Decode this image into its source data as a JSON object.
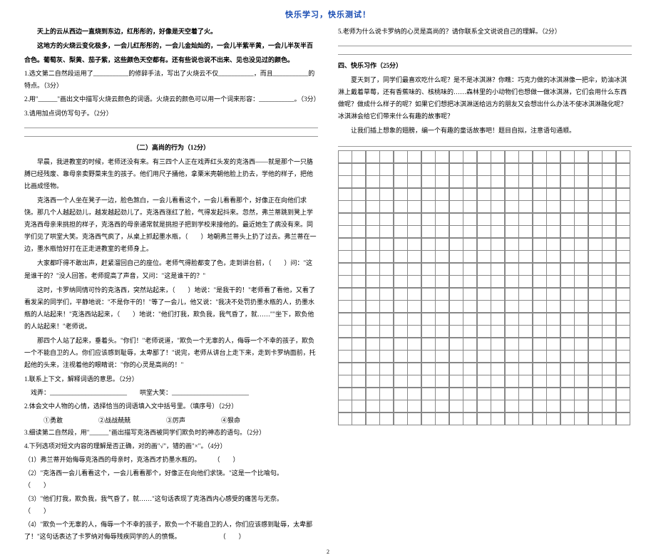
{
  "header": "快乐学习，快乐测试！",
  "left": {
    "p1": "天上的云从西边一直烧到东边，红彤彤的，好像是天空着了火。",
    "p2a": "这地方的火烧云变化极多，一会儿红彤彤的，一会儿金灿灿的，一会儿半紫半黄，一会儿半灰半百",
    "p2b": "合色。葡萄灰、梨黄、茄子紫，这些颜色天空都有。还有些说也说不出来、见也没见过的颜色。",
    "q1": "1.选文第二自然段运用了___________的修辞手法，写出了火烧云不仅___________，而且___________的特点。（3分）",
    "q2": "2.用\"______\"画出文中描写火烧云颜色的词语。火烧云的颜色可以用一个词来形容：___________。（3分）",
    "q3": "3.请用加点词仿写句子。（2分）",
    "title2": "（二）高尚的行为（12分）",
    "s1": "早晨，我进教室的时候，老师还没有来。有三四个人正在戏弄红头发的克洛西——就是那个一只胳膊已经残废、靠母亲卖野菜来生的孩子。他们用尺子捅他，拿栗米壳朝他脸上扔去，学他的样子，把他比画成怪物。",
    "s2": "克洛西一个人坐在凳子一边，脸色煞白，一会儿看看这个，一会儿看看那个，好像正在向他们求饶。那几个人越起劲儿，越发越起劲儿了。克洛西涨红了脸，气得发起抖来。忽然，弗兰蒂跳到凳上学克洛西母亲来挑担的样子，克洛西的母亲通常就是挑担子把到学校来接他的。最近她生了病没有来。同学们见了哄堂大笑。克洛西气疯了，从桌上抓起墨水瓶，（　　）地朝弗兰蒂头上扔了过去。弗兰蒂在一边，墨水瓶恰好打在正走进教室的老师身上。",
    "s3": "大家都吓得不敢出声，赶紧溜回自己的座位。老师气得脸都变了色，走到讲台前，（　　）问：\"这是谁干的？\"没人回答。老师提高了声音，又问：\"这是谁干的？\"",
    "s4": "这时，卡罗纳同情可怜的克洛西，突然站起来，（　　）地说：\"是我干的！\"老师看了看他，又看了看发呆的同学们，平静地说：\"不是你干的！\"等了一会儿，他又说：\"我决不处罚扔墨水瓶的人，扔墨水瓶的人站起来！\"克洛西站起来，（　　）地说：\"他们打我，欺负我，我气昏了，就……\"\"坐下，欺负他的人站起来！\"老师说。",
    "s5": "那四个人站了起来，垂着头。\"你们！\"老师说道，\"欺负一个无辜的人，侮辱一个不幸的孩子，欺负一个不能自卫的人。你们应该感到耻辱，太卑鄙了！\"说完，老师从讲台上走下来，走到卡罗纳面前，托起他的头来，注视着他的眼睛说：\"你的心灵是高尚的！\"",
    "lq1a": "1.联系上下文，解释词语的意思。（2分）",
    "lq1b": "戏弄：________________________　　哄堂大笑：________________________",
    "lq2": "2.体会文中人物的心情，选择恰当的词语填入文中括号里。（填序号）（2分）",
    "opts": [
      "①勇敢",
      "②战战兢兢",
      "③厉声",
      "④狠命"
    ],
    "lq3": "3.细读第二自然段，用\"______\"画出描写克洛西被同学们欺负时的神态的语句。（2分）",
    "lq4": "4.下列选项对短文内容的理解是否正确，对的画\"√\"，错的画\"×\"。（4分）",
    "lq4a": "（1）弗兰蒂开始侮辱克洛西的母亲时，克洛西才扔墨水瓶的。　　　（　　）",
    "lq4b": "（2）\"克洛西一会儿看看这个，一会儿看看那个，好像正在向他们求饶。\"这是一个比喻句。　　　　　　　　　　　　　　　　　　　　　　　　　　　　　　　　　　　（　　）",
    "lq4c": "（3）\"他们打我，欺负我，我气昏了，就……\"这句话表现了克洛西内心感受的痛苦与无奈。　　　　　　　　　　　　　　　　　　　　　　　　　　　　　　　　　　　（　　）",
    "lq4d": "（4）\"欺负一个无辜的人，侮辱一个不幸的孩子，欺负一个不能自卫的人，你们应该感到耻辱，太卑鄙了！\"这句话表达了卡罗纳对侮辱残疾同学的人的愤慨。　　　　　　　（　　）"
  },
  "right": {
    "q5": "5.老师为什么说卡罗纳的心灵是高尚的？请你联系全文说说自己的理解。（2分）",
    "sec": "四、快乐习作（25分）",
    "p1": "夏天到了，同学们最喜欢吃什么呢？是不是冰淇淋？你瞧：巧克力做的冰淇淋像一把伞，奶油冰淇淋上戴着草莓，还有香蕉味的、核桃味的……森林里的小动物们也想做一做冰淇淋，它们会用什么东西做呢？做成什么样子的呢？如果它们想把冰淇淋送给远方的朋友又会想出什么办法不使冰淇淋融化呢？冰淇淋会给它们带来什么有趣的故事呢？",
    "p2": "让我们插上想象的翅膀，编一个有趣的童话故事吧！题目自拟，注意语句通顺。",
    "grid": {
      "rows": 22,
      "cols": 21
    }
  },
  "pagenum": "2"
}
